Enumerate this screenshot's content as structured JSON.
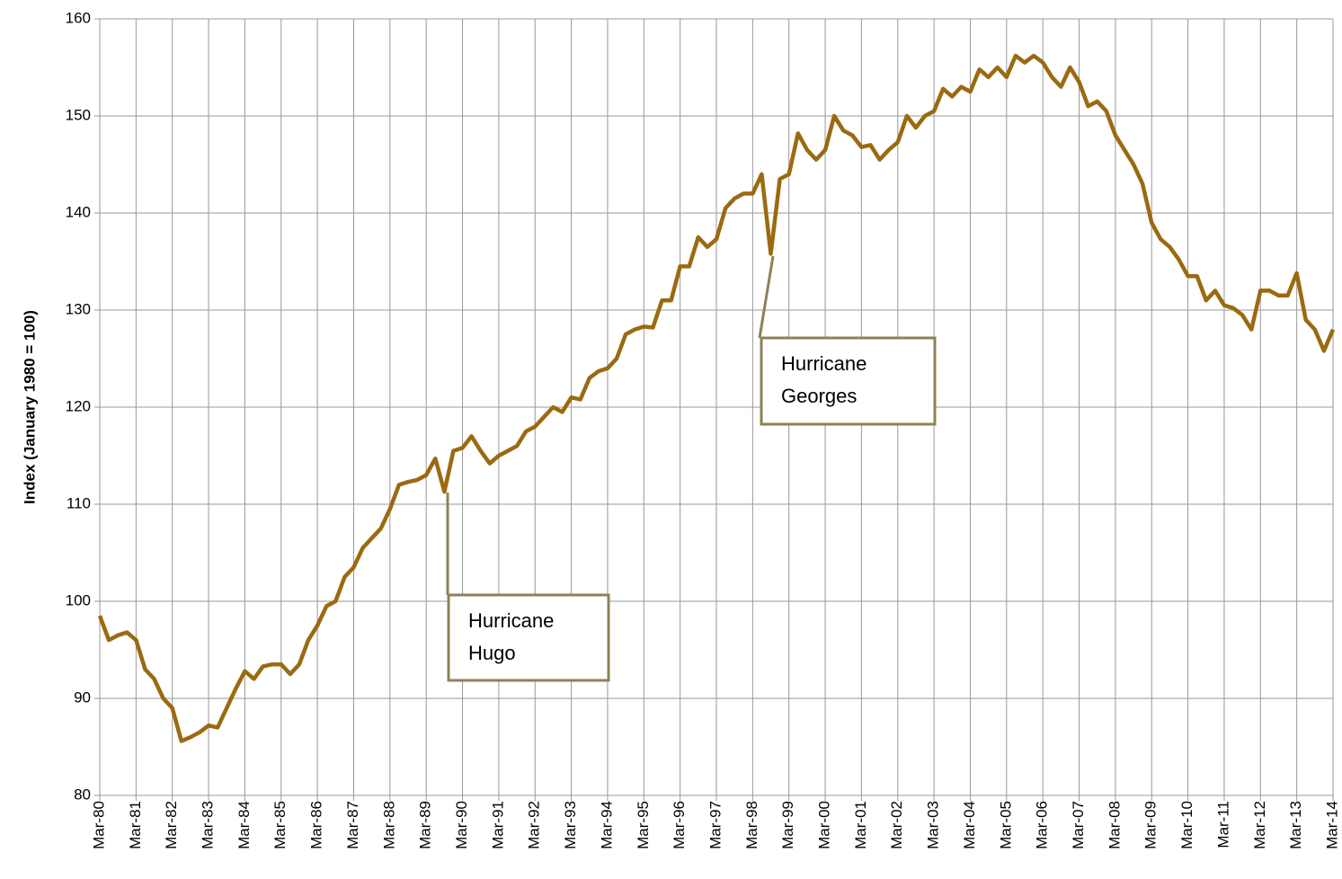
{
  "chart_data": {
    "type": "line",
    "y_label": "Index (January 1980 = 100)",
    "categories": [
      "Mar-80",
      null,
      null,
      null,
      "Mar-81",
      null,
      null,
      null,
      "Mar-82",
      null,
      null,
      null,
      "Mar-83",
      null,
      null,
      null,
      "Mar-84",
      null,
      null,
      null,
      "Mar-85",
      null,
      null,
      null,
      "Mar-86",
      null,
      null,
      null,
      "Mar-87",
      null,
      null,
      null,
      "Mar-88",
      null,
      null,
      null,
      "Mar-89",
      null,
      null,
      null,
      "Mar-90",
      null,
      null,
      null,
      "Mar-91",
      null,
      null,
      null,
      "Mar-92",
      null,
      null,
      null,
      "Mar-93",
      null,
      null,
      null,
      "Mar-94",
      null,
      null,
      null,
      "Mar-95",
      null,
      null,
      null,
      "Mar-96",
      null,
      null,
      null,
      "Mar-97",
      null,
      null,
      null,
      "Mar-98",
      null,
      null,
      null,
      "Mar-99",
      null,
      null,
      null,
      "Mar-00",
      null,
      null,
      null,
      "Mar-01",
      null,
      null,
      null,
      "Mar-02",
      null,
      null,
      null,
      "Mar-03",
      null,
      null,
      null,
      "Mar-04",
      null,
      null,
      null,
      "Mar-05",
      null,
      null,
      null,
      "Mar-06",
      null,
      null,
      null,
      "Mar-07",
      null,
      null,
      null,
      "Mar-08",
      null,
      null,
      null,
      "Mar-09",
      null,
      null,
      null,
      "Mar-10",
      null,
      null,
      null,
      "Mar-11",
      null,
      null,
      null,
      "Mar-12",
      null,
      null,
      null,
      "Mar-13",
      null,
      null,
      null,
      "Mar-14"
    ],
    "values": [
      98.5,
      96,
      96.5,
      96.8,
      96,
      93,
      92,
      90,
      89,
      85.6,
      86,
      86.5,
      87.2,
      87,
      89,
      91,
      92.8,
      92,
      93.3,
      93.5,
      93.5,
      92.5,
      93.5,
      96,
      97.5,
      99.5,
      100,
      102.5,
      103.5,
      105.5,
      106.5,
      107.5,
      109.5,
      112,
      112.3,
      112.5,
      113,
      114.7,
      111.3,
      115.5,
      115.8,
      117,
      115.5,
      114.2,
      115,
      115.5,
      116,
      117.5,
      118,
      119,
      120,
      119.5,
      121,
      120.8,
      123,
      123.7,
      124,
      125,
      127.5,
      128,
      128.3,
      128.2,
      131,
      131,
      134.5,
      134.5,
      137.5,
      136.5,
      137.3,
      140.5,
      141.5,
      142,
      142,
      144,
      135.8,
      143.5,
      144,
      148.2,
      146.5,
      145.5,
      146.5,
      150,
      148.5,
      148,
      146.8,
      147,
      145.5,
      146.5,
      147.3,
      150,
      148.8,
      150,
      150.5,
      152.8,
      152,
      153,
      152.5,
      154.8,
      154,
      155,
      154,
      156.2,
      155.5,
      156.2,
      155.5,
      154,
      153,
      155,
      153.5,
      151,
      151.5,
      150.5,
      148,
      146.5,
      145,
      143,
      139,
      137.3,
      136.5,
      135.2,
      133.5,
      133.5,
      131,
      132,
      130.5,
      130.2,
      129.5,
      128,
      132,
      132,
      131.5,
      131.5,
      133.8,
      129,
      128,
      125.8,
      128
    ],
    "color": "#9b6a10",
    "ylim": [
      80,
      160
    ],
    "yticks": [
      80,
      90,
      100,
      110,
      120,
      130,
      140,
      150,
      160
    ],
    "grid": true,
    "annotations": [
      {
        "lines": [
          "Hurricane",
          "Hugo"
        ]
      },
      {
        "lines": [
          "Hurricane",
          "Georges"
        ]
      }
    ]
  }
}
